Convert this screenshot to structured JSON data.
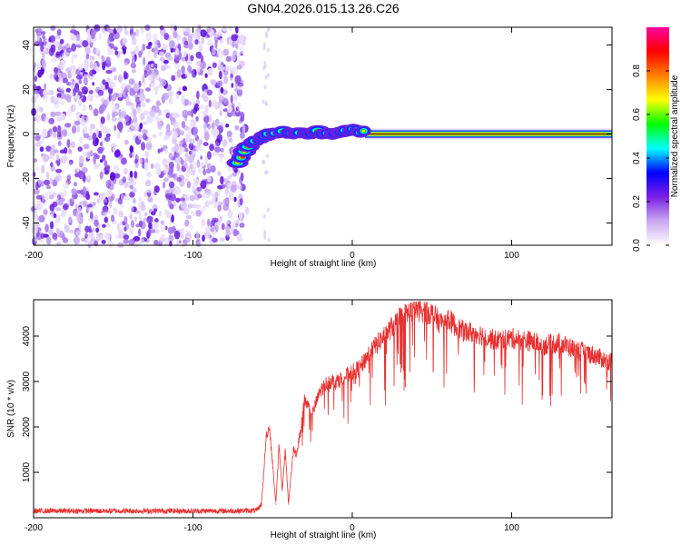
{
  "title": "GN04.2026.015.13.26.C26",
  "chart_data": [
    {
      "type": "heatmap",
      "name": "spectrogram",
      "xlabel": "Height of straight line (km)",
      "ylabel": "Frequency (Hz)",
      "xlim": [
        -200,
        163
      ],
      "ylim": [
        -50,
        48
      ],
      "xticks": [
        -200,
        -100,
        0,
        100
      ],
      "yticks": [
        -40,
        -20,
        0,
        20,
        40
      ],
      "noise_region_x": [
        -200,
        -68
      ],
      "signal_track": [
        {
          "x": -72,
          "y": -13
        },
        {
          "x": -68,
          "y": -8
        },
        {
          "x": -64,
          "y": -4
        },
        {
          "x": -58,
          "y": -2
        },
        {
          "x": -52,
          "y": 0
        },
        {
          "x": -45,
          "y": 1
        },
        {
          "x": -38,
          "y": 0
        },
        {
          "x": -30,
          "y": 0
        },
        {
          "x": -22,
          "y": 1
        },
        {
          "x": -15,
          "y": 0
        },
        {
          "x": -8,
          "y": 1
        },
        {
          "x": -2,
          "y": 2
        },
        {
          "x": 5,
          "y": 1
        },
        {
          "x": 20,
          "y": 0
        },
        {
          "x": 60,
          "y": 0
        },
        {
          "x": 100,
          "y": 0
        },
        {
          "x": 140,
          "y": 0
        },
        {
          "x": 163,
          "y": 0
        }
      ],
      "colorbar": {
        "label": "Normalized spectral amplitude",
        "ticks": [
          0.0,
          0.2,
          0.4,
          0.6,
          0.8
        ],
        "range": [
          0,
          1
        ],
        "colors": [
          "#ffffff",
          "#c9a8f0",
          "#7b1fe6",
          "#0000ff",
          "#00ffff",
          "#00ff00",
          "#ffff00",
          "#ff8000",
          "#ff0000",
          "#ff00a0"
        ]
      }
    },
    {
      "type": "line",
      "name": "snr",
      "xlabel": "Height of straight line (km)",
      "ylabel": "SNR (10 * v/v)",
      "xlim": [
        -200,
        163
      ],
      "ylim": [
        0,
        4800
      ],
      "xticks": [
        -200,
        -100,
        0,
        100
      ],
      "yticks": [
        1000,
        2000,
        3000,
        4000
      ],
      "series": [
        {
          "name": "SNR",
          "color": "#e83030",
          "x": [
            -200,
            -160,
            -120,
            -80,
            -60,
            -57,
            -54,
            -52,
            -50,
            -48,
            -46,
            -44,
            -42,
            -40,
            -37,
            -35,
            -32,
            -30,
            -25,
            -20,
            -15,
            -10,
            -5,
            0,
            5,
            10,
            15,
            20,
            25,
            30,
            35,
            40,
            45,
            50,
            55,
            60,
            65,
            70,
            80,
            90,
            100,
            110,
            120,
            130,
            140,
            150,
            160,
            163
          ],
          "y": [
            150,
            150,
            150,
            150,
            160,
            300,
            1800,
            2000,
            1200,
            300,
            1600,
            600,
            1500,
            300,
            1500,
            1400,
            2000,
            2600,
            2300,
            2800,
            3000,
            3000,
            3100,
            3200,
            3300,
            3600,
            3800,
            4000,
            4200,
            4400,
            4500,
            4600,
            4550,
            4500,
            4300,
            4400,
            4200,
            4100,
            4050,
            3900,
            3950,
            3900,
            3800,
            3850,
            3700,
            3600,
            3450,
            3450
          ]
        }
      ]
    }
  ]
}
